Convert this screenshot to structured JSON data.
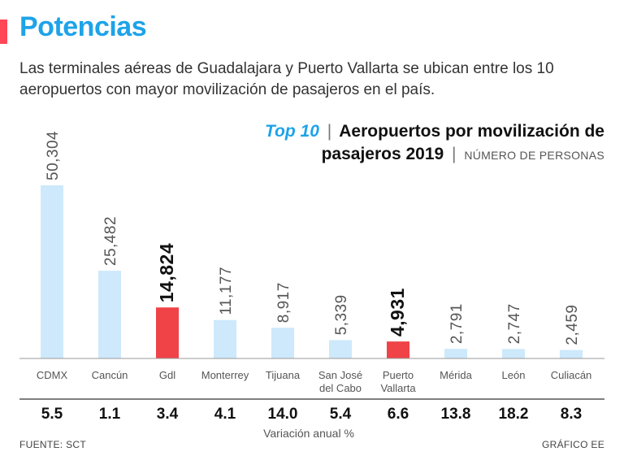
{
  "header": {
    "headline": "Potencias",
    "subtitle": "Las terminales aéreas de Guadalajara y Puerto Vallarta se ubican entre los 10 aeropuertos con mayor movilización de pasajeros en el país."
  },
  "chart_title": {
    "top_label": "Top 10",
    "sep": "|",
    "line1": "Aeropuertos por movilización de",
    "line2": "pasajeros 2019",
    "units": "NÚMERO DE PERSONAS"
  },
  "footer": {
    "source": "FUENTE: SCT",
    "credit": "GRÁFICO EE"
  },
  "colors": {
    "accent": "#1ea3e8",
    "bar": "#cde9fb",
    "highlight": "#ef4348"
  },
  "chart_data": {
    "type": "bar",
    "title": "Top 10 | Aeropuertos por movilización de pasajeros 2019",
    "ylabel": "NÚMERO DE PERSONAS",
    "xlabel": "",
    "ylim": [
      0,
      50304
    ],
    "categories": [
      [
        "CDMX"
      ],
      [
        "Cancún"
      ],
      [
        "Gdl"
      ],
      [
        "Monterrey"
      ],
      [
        "Tijuana"
      ],
      [
        "San José",
        "del Cabo"
      ],
      [
        "Puerto",
        "Vallarta"
      ],
      [
        "Mérida"
      ],
      [
        "León"
      ],
      [
        "Culiacán"
      ]
    ],
    "values": [
      50304,
      25482,
      14824,
      11177,
      8917,
      5339,
      4931,
      2791,
      2747,
      2459
    ],
    "value_labels": [
      "50,304",
      "25,482",
      "14,824",
      "11,177",
      "8,917",
      "5,339",
      "4,931",
      "2,791",
      "2,747",
      "2,459"
    ],
    "highlighted": [
      false,
      false,
      true,
      false,
      false,
      false,
      true,
      false,
      false,
      false
    ],
    "secondary_series": {
      "name": "Variación anual %",
      "values": [
        "5.5",
        "1.1",
        "3.4",
        "4.1",
        "14.0",
        "5.4",
        "6.6",
        "13.8",
        "18.2",
        "8.3"
      ]
    },
    "grid": false,
    "legend": "none"
  }
}
